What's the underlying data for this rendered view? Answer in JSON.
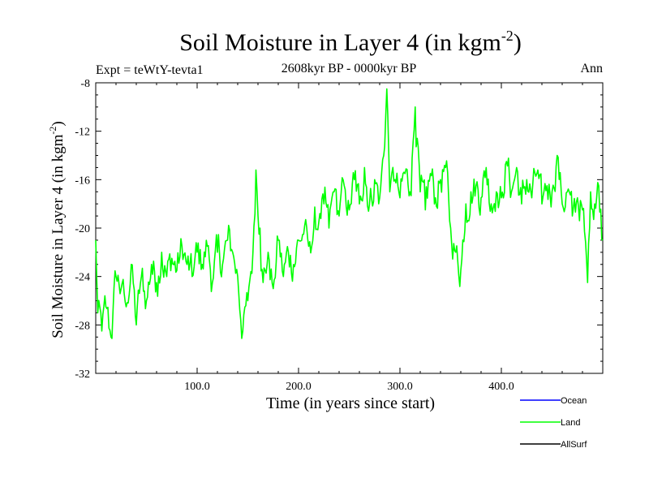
{
  "chart_data": {
    "type": "line",
    "title_main": "Soil Moisture in Layer 4 (in kgm",
    "title_sup": "-2",
    "title_close": ")",
    "subtitle": "2608kyr BP - 0000kyr BP",
    "expt_label": "Expt = teWtY-tevta1",
    "period_label": "Ann",
    "xlabel": "Time (in years since start)",
    "ylabel_main": "Soil Moisture in Layer 4 (in kgm",
    "ylabel_sup": "-2",
    "ylabel_close": ")",
    "xlim": [
      0,
      500
    ],
    "ylim": [
      -32,
      -8
    ],
    "x_ticks": [
      100,
      200,
      300,
      400
    ],
    "x_tick_labels": [
      "100.0",
      "200.0",
      "300.0",
      "400.0"
    ],
    "y_ticks": [
      -8,
      -12,
      -16,
      -20,
      -24,
      -28,
      -32
    ],
    "y_tick_labels": [
      "-8",
      "-12",
      "-16",
      "-20",
      "-24",
      "-28",
      "-32"
    ],
    "legend_position": "bottom-right",
    "series": [
      {
        "name": "Ocean",
        "color": "#0000ff",
        "values": []
      },
      {
        "name": "Land",
        "color": "#00ff00",
        "anchors": [
          [
            0,
            -21
          ],
          [
            2,
            -27
          ],
          [
            6,
            -28.5
          ],
          [
            10,
            -26.5
          ],
          [
            15,
            -29
          ],
          [
            20,
            -24
          ],
          [
            25,
            -25
          ],
          [
            30,
            -26.5
          ],
          [
            35,
            -23
          ],
          [
            40,
            -28
          ],
          [
            45,
            -24
          ],
          [
            50,
            -26
          ],
          [
            55,
            -23
          ],
          [
            60,
            -24.5
          ],
          [
            65,
            -22
          ],
          [
            70,
            -24
          ],
          [
            75,
            -22.5
          ],
          [
            80,
            -23.5
          ],
          [
            85,
            -21.5
          ],
          [
            90,
            -23
          ],
          [
            95,
            -24
          ],
          [
            100,
            -22
          ],
          [
            105,
            -23
          ],
          [
            110,
            -21.5
          ],
          [
            115,
            -24.5
          ],
          [
            120,
            -22
          ],
          [
            125,
            -23
          ],
          [
            130,
            -21
          ],
          [
            135,
            -22
          ],
          [
            140,
            -24
          ],
          [
            145,
            -28.5
          ],
          [
            150,
            -26
          ],
          [
            155,
            -22
          ],
          [
            158,
            -15.2
          ],
          [
            162,
            -20
          ],
          [
            165,
            -24.5
          ],
          [
            170,
            -22
          ],
          [
            175,
            -25
          ],
          [
            180,
            -21
          ],
          [
            185,
            -24
          ],
          [
            190,
            -22
          ],
          [
            195,
            -23
          ],
          [
            200,
            -21
          ],
          [
            205,
            -20.5
          ],
          [
            210,
            -21.5
          ],
          [
            215,
            -20
          ],
          [
            220,
            -19.5
          ],
          [
            225,
            -18
          ],
          [
            230,
            -20
          ],
          [
            235,
            -17
          ],
          [
            240,
            -19
          ],
          [
            245,
            -16.5
          ],
          [
            250,
            -18.5
          ],
          [
            255,
            -16
          ],
          [
            260,
            -18
          ],
          [
            265,
            -15
          ],
          [
            270,
            -18
          ],
          [
            275,
            -16
          ],
          [
            280,
            -17.5
          ],
          [
            284,
            -14
          ],
          [
            287,
            -8.5
          ],
          [
            290,
            -17
          ],
          [
            295,
            -16
          ],
          [
            300,
            -17.5
          ],
          [
            305,
            -15.5
          ],
          [
            310,
            -17
          ],
          [
            315,
            -10
          ],
          [
            320,
            -17
          ],
          [
            325,
            -18.5
          ],
          [
            330,
            -15.5
          ],
          [
            335,
            -17.5
          ],
          [
            340,
            -16
          ],
          [
            345,
            -15
          ],
          [
            350,
            -20
          ],
          [
            355,
            -22
          ],
          [
            360,
            -23.5
          ],
          [
            365,
            -18
          ],
          [
            370,
            -17
          ],
          [
            375,
            -16.5
          ],
          [
            380,
            -17.5
          ],
          [
            385,
            -15
          ],
          [
            390,
            -18
          ],
          [
            395,
            -17
          ],
          [
            400,
            -17.5
          ],
          [
            405,
            -14.5
          ],
          [
            410,
            -17
          ],
          [
            415,
            -15
          ],
          [
            420,
            -18
          ],
          [
            425,
            -16
          ],
          [
            430,
            -17.5
          ],
          [
            435,
            -15.5
          ],
          [
            440,
            -18
          ],
          [
            445,
            -16.5
          ],
          [
            450,
            -17
          ],
          [
            455,
            -14
          ],
          [
            460,
            -18
          ],
          [
            465,
            -17
          ],
          [
            470,
            -19
          ],
          [
            475,
            -17.5
          ],
          [
            480,
            -18.5
          ],
          [
            485,
            -24.5
          ],
          [
            488,
            -17
          ],
          [
            492,
            -18
          ],
          [
            496,
            -16.5
          ],
          [
            500,
            -21
          ]
        ]
      },
      {
        "name": "AllSurf",
        "color": "#000000",
        "values": []
      }
    ]
  }
}
